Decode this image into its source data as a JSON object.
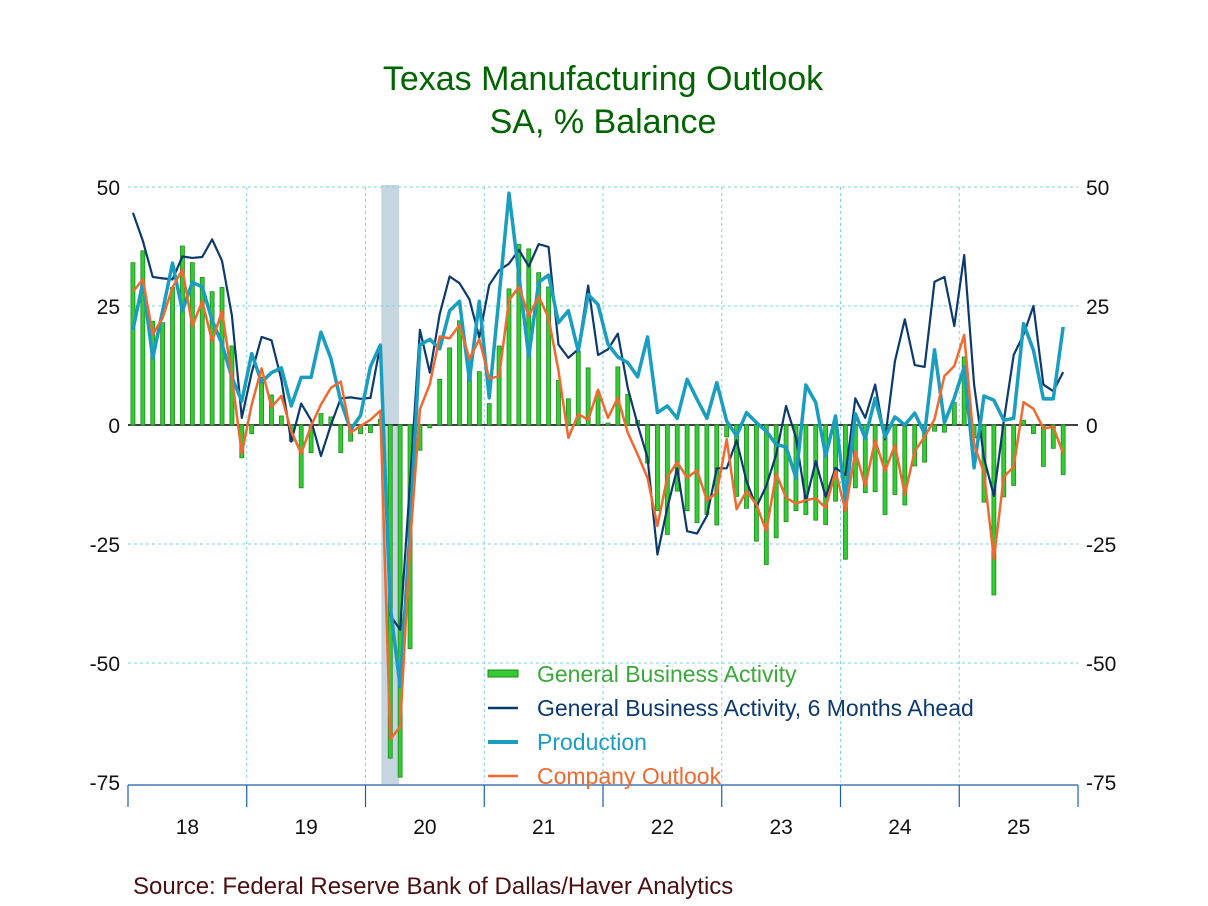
{
  "chart_data": {
    "type": "bar+line",
    "title": "Texas Manufacturing Outlook",
    "subtitle": "SA, % Balance",
    "source": "Source:  Federal Reserve Bank of Dallas/Haver Analytics",
    "x_start": "2018-01",
    "x_frequency": "monthly",
    "x_tick_labels": [
      "18",
      "19",
      "20",
      "21",
      "22",
      "23",
      "24",
      "25"
    ],
    "ylim": [
      -75,
      50
    ],
    "y_ticks": [
      50,
      25,
      0,
      -25,
      -50,
      -75
    ],
    "y_tick_labels": [
      "50",
      "25",
      "0",
      "-25",
      "-50",
      "-75"
    ],
    "grid": true,
    "recession": {
      "start": "2020-03",
      "end": "2020-04"
    },
    "legend_position": "bottom-center",
    "series": [
      {
        "name": "General Business Activity",
        "type": "bar",
        "color": "#33cc33",
        "values": [
          34.1,
          36.6,
          21.8,
          21.5,
          28.9,
          37.6,
          34.1,
          31,
          28,
          28.9,
          16.6,
          -6.9,
          -1.8,
          10,
          6.3,
          1.9,
          -3.4,
          -13.2,
          -5.8,
          2.4,
          1.7,
          -5.8,
          -3.4,
          -1.8,
          -1.6,
          1.2,
          -70,
          -74,
          -47,
          -5.3,
          -0.6,
          9.6,
          16.2,
          21.9,
          13.5,
          11.2,
          4.5,
          16.6,
          28.6,
          37.9,
          37,
          32,
          29,
          9.4,
          5.5,
          15.5,
          12,
          7,
          0.4,
          12.2,
          6.4,
          1,
          -8,
          -18,
          -23,
          -13.9,
          -18,
          -20.5,
          -18.8,
          -21,
          -2.5,
          -15,
          -17.5,
          -24.4,
          -29.3,
          -23.7,
          -20.3,
          -18,
          -18.8,
          -20,
          -20.9,
          -16,
          -28.2,
          -13.2,
          -14.2,
          -14,
          -18.8,
          -14.6,
          -16.8,
          -8.6,
          -7.8,
          -1.3,
          -1.5,
          4.7,
          14.3,
          -2.7,
          -16.2,
          -35.7,
          -15.1,
          -12.7,
          1,
          -1.8,
          -8.7,
          -4.9,
          -10.4
        ]
      },
      {
        "name": "General Business Activity, 6 Months Ahead",
        "type": "line",
        "color": "#0d3a6e",
        "values": [
          44.6,
          38.7,
          31.1,
          30.8,
          30.6,
          35.4,
          35.1,
          35.3,
          39,
          34.5,
          23,
          1.5,
          11,
          18.5,
          17.8,
          9.5,
          -3.5,
          4.5,
          1,
          -6.5,
          0,
          5.6,
          5.8,
          5.5,
          5.7,
          16.8,
          -40,
          -43,
          -12,
          20,
          11,
          23.3,
          31.2,
          29.8,
          26.4,
          18.4,
          29.4,
          32.5,
          33.9,
          36.8,
          33.3,
          38,
          37.4,
          16.9,
          14.1,
          15.9,
          29.3,
          14.7,
          15.9,
          19.2,
          7.8,
          0.1,
          -6.9,
          -27.2,
          -17.4,
          -9.1,
          -22.3,
          -22.8,
          -19.1,
          -9.1,
          -9.1,
          -3.2,
          -11.8,
          -17.2,
          -12.8,
          -6.2,
          4,
          -2.7,
          -16.1,
          -7.6,
          -15.1,
          -9,
          -10.5,
          5.6,
          1.5,
          8.5,
          -3,
          13.4,
          22.2,
          12.6,
          12.2,
          30.1,
          31.1,
          20.8,
          35.7,
          8.5,
          -6.9,
          -14.9,
          0.8,
          14.7,
          19,
          25,
          8.5,
          7.1,
          11.1
        ]
      },
      {
        "name": "Production",
        "type": "line",
        "color": "#1a9ec0",
        "values": [
          20,
          30,
          14,
          24,
          34,
          24,
          30,
          29,
          22,
          17,
          10,
          5,
          15,
          9,
          11,
          12,
          4,
          10,
          10,
          19.5,
          14,
          5,
          -1,
          2,
          12.3,
          16.8,
          -38,
          -55,
          -22,
          16.8,
          18,
          16,
          24,
          26,
          9.4,
          26,
          5.7,
          27,
          48.7,
          31.5,
          14.3,
          30,
          31.5,
          21.5,
          24,
          15.5,
          27.4,
          25.3,
          17,
          14.3,
          13.1,
          10.1,
          18.5,
          2.6,
          4,
          1.4,
          9.6,
          5.4,
          1.4,
          8.9,
          0.8,
          -2.3,
          2.6,
          0.5,
          -1.3,
          -4.1,
          -4.6,
          -11.1,
          8.4,
          4.7,
          -6.5,
          1.9,
          -16,
          2.4,
          -2.8,
          5.6,
          -2.5,
          1.7,
          0,
          2.5,
          -1.8,
          15.8,
          0.5,
          5.7,
          12.2,
          -9,
          6.1,
          5.2,
          1,
          1.4,
          21.3,
          15.7,
          5.5,
          5.5,
          20.6
        ]
      },
      {
        "name": "Company Outlook",
        "type": "line",
        "color": "#f06a30",
        "values": [
          28,
          30.6,
          19,
          22.5,
          28.9,
          32.7,
          20.8,
          26,
          17.6,
          24,
          10,
          -6,
          4.3,
          11.9,
          3.8,
          6.1,
          -1.3,
          -6,
          -0.2,
          4.3,
          7.8,
          9.1,
          -1.6,
          -0.2,
          1.1,
          3,
          -66,
          -63.4,
          -25,
          3.3,
          8.6,
          18.6,
          18.2,
          21,
          13.9,
          18,
          9.8,
          10.2,
          26.2,
          29,
          22.9,
          27,
          22.5,
          11.4,
          -2.7,
          2.3,
          1.1,
          7.4,
          1.5,
          5.7,
          -1.6,
          -6.2,
          -11.1,
          -21.2,
          -10.9,
          -7.8,
          -11.1,
          -9.5,
          -15.8,
          -14.2,
          -3,
          -17.7,
          -13.9,
          -16.7,
          -22.3,
          -10.2,
          -15.3,
          -16.5,
          -15.8,
          -15.4,
          -17.4,
          -9.7,
          -18,
          -5.5,
          -12.8,
          -3.2,
          -9.7,
          -4.2,
          -14.6,
          -5.5,
          -2.5,
          1.2,
          10.3,
          12.4,
          18.9,
          -4.2,
          -10,
          -28.2,
          -10.9,
          -8.8,
          4.8,
          3.4,
          -0.7,
          -0.4,
          -6
        ]
      }
    ]
  }
}
